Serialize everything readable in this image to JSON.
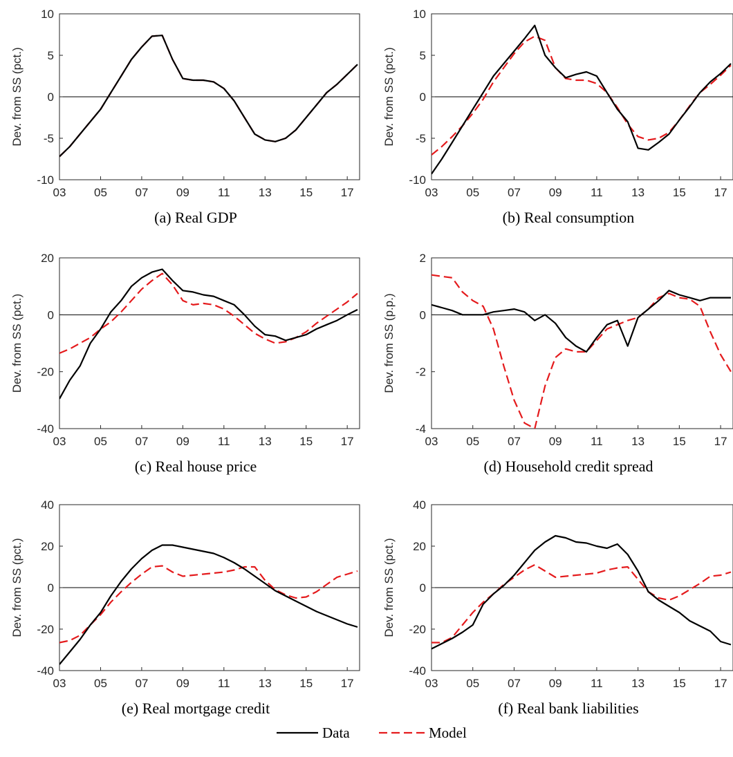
{
  "legend": {
    "entries": [
      {
        "label": "Data",
        "color": "#000000",
        "dash": "solid"
      },
      {
        "label": "Model",
        "color": "#e41a1c",
        "dash": "dashed"
      }
    ],
    "placement": "bottom-center"
  },
  "colors": {
    "data": "#000000",
    "model": "#e41a1c"
  },
  "chart_data": [
    {
      "type": "line",
      "caption": "(a) Real GDP",
      "ylabel": "Dev. from SS (pct.)",
      "xlim": [
        2003,
        2017.6
      ],
      "ylim": [
        -10,
        10
      ],
      "yticks": [
        -10,
        -5,
        0,
        5,
        10
      ],
      "xtick_labels": [
        "03",
        "05",
        "07",
        "09",
        "11",
        "13",
        "15",
        "17"
      ],
      "x": [
        2003.0,
        2003.5,
        2004.0,
        2004.5,
        2005.0,
        2005.5,
        2006.0,
        2006.5,
        2007.0,
        2007.5,
        2008.0,
        2008.5,
        2009.0,
        2009.5,
        2010.0,
        2010.5,
        2011.0,
        2011.5,
        2012.0,
        2012.5,
        2013.0,
        2013.5,
        2014.0,
        2014.5,
        2015.0,
        2015.5,
        2016.0,
        2016.5,
        2017.0,
        2017.5
      ],
      "series": [
        {
          "name": "Data",
          "values": [
            -7.2,
            -6.0,
            -4.5,
            -3.0,
            -1.5,
            0.5,
            2.5,
            4.5,
            6.0,
            7.3,
            7.4,
            4.5,
            2.2,
            2.0,
            2.0,
            1.8,
            1.0,
            -0.5,
            -2.5,
            -4.5,
            -5.2,
            -5.4,
            -5.0,
            -4.0,
            -2.5,
            -1.0,
            0.5,
            1.5,
            2.7,
            3.9
          ]
        },
        {
          "name": "Model",
          "values": [
            -7.2,
            -6.0,
            -4.5,
            -3.0,
            -1.5,
            0.5,
            2.5,
            4.5,
            6.0,
            7.3,
            7.4,
            4.5,
            2.2,
            2.0,
            2.0,
            1.8,
            1.0,
            -0.5,
            -2.5,
            -4.5,
            -5.2,
            -5.4,
            -5.0,
            -4.0,
            -2.5,
            -1.0,
            0.5,
            1.5,
            2.7,
            3.9
          ]
        }
      ]
    },
    {
      "type": "line",
      "caption": "(b) Real consumption",
      "ylabel": "Dev. from SS (pct.)",
      "xlim": [
        2003,
        2017.6
      ],
      "ylim": [
        -10,
        10
      ],
      "yticks": [
        -10,
        -5,
        0,
        5,
        10
      ],
      "xtick_labels": [
        "03",
        "05",
        "07",
        "09",
        "11",
        "13",
        "15",
        "17"
      ],
      "x": [
        2003.0,
        2003.5,
        2004.0,
        2004.5,
        2005.0,
        2005.5,
        2006.0,
        2006.5,
        2007.0,
        2007.5,
        2008.0,
        2008.5,
        2009.0,
        2009.5,
        2010.0,
        2010.5,
        2011.0,
        2011.5,
        2012.0,
        2012.5,
        2013.0,
        2013.5,
        2014.0,
        2014.5,
        2015.0,
        2015.5,
        2016.0,
        2016.5,
        2017.0,
        2017.5
      ],
      "series": [
        {
          "name": "Data",
          "values": [
            -9.3,
            -7.5,
            -5.5,
            -3.5,
            -1.5,
            0.5,
            2.5,
            4.0,
            5.5,
            7.0,
            8.6,
            5.0,
            3.5,
            2.3,
            2.7,
            3.0,
            2.5,
            0.5,
            -1.5,
            -3.0,
            -6.2,
            -6.4,
            -5.5,
            -4.5,
            -2.8,
            -1.2,
            0.5,
            1.8,
            2.8,
            4.0
          ]
        },
        {
          "name": "Model",
          "values": [
            -7.0,
            -6.0,
            -4.8,
            -3.5,
            -2.0,
            -0.3,
            1.8,
            3.5,
            5.2,
            6.6,
            7.3,
            6.8,
            3.5,
            2.2,
            2.0,
            2.0,
            1.6,
            0.5,
            -1.3,
            -3.3,
            -4.8,
            -5.2,
            -5.0,
            -4.3,
            -2.8,
            -1.1,
            0.5,
            1.5,
            2.6,
            3.8
          ]
        }
      ]
    },
    {
      "type": "line",
      "caption": "(c) Real house price",
      "ylabel": "Dev. from SS (pct.)",
      "xlim": [
        2003,
        2017.6
      ],
      "ylim": [
        -40,
        20
      ],
      "yticks": [
        -40,
        -20,
        0,
        20
      ],
      "xtick_labels": [
        "03",
        "05",
        "07",
        "09",
        "11",
        "13",
        "15",
        "17"
      ],
      "x": [
        2003.0,
        2003.5,
        2004.0,
        2004.5,
        2005.0,
        2005.5,
        2006.0,
        2006.5,
        2007.0,
        2007.5,
        2008.0,
        2008.5,
        2009.0,
        2009.5,
        2010.0,
        2010.5,
        2011.0,
        2011.5,
        2012.0,
        2012.5,
        2013.0,
        2013.5,
        2014.0,
        2014.5,
        2015.0,
        2015.5,
        2016.0,
        2016.5,
        2017.0,
        2017.5
      ],
      "series": [
        {
          "name": "Data",
          "values": [
            -29.5,
            -23.0,
            -18.0,
            -10.0,
            -5.0,
            1.0,
            5.0,
            10.0,
            13.0,
            15.0,
            16.0,
            12.0,
            8.5,
            8.0,
            7.0,
            6.5,
            5.0,
            3.5,
            0.0,
            -4.0,
            -7.0,
            -7.5,
            -9.0,
            -8.0,
            -7.0,
            -5.0,
            -3.5,
            -2.0,
            0.0,
            1.8
          ]
        },
        {
          "name": "Model",
          "values": [
            -13.5,
            -12.0,
            -10.0,
            -8.0,
            -5.0,
            -2.5,
            1.0,
            5.0,
            9.0,
            12.0,
            14.5,
            10.5,
            5.0,
            3.5,
            4.0,
            3.5,
            2.0,
            -0.5,
            -3.5,
            -6.5,
            -8.5,
            -10.0,
            -9.5,
            -8.0,
            -6.0,
            -3.0,
            -0.5,
            2.0,
            4.5,
            7.5
          ]
        }
      ]
    },
    {
      "type": "line",
      "caption": "(d) Household credit spread",
      "ylabel": "Dev. from SS (p.p.)",
      "xlim": [
        2003,
        2017.6
      ],
      "ylim": [
        -4,
        2
      ],
      "yticks": [
        -4,
        -2,
        0,
        2
      ],
      "xtick_labels": [
        "03",
        "05",
        "07",
        "09",
        "11",
        "13",
        "15",
        "17"
      ],
      "x": [
        2003.0,
        2003.5,
        2004.0,
        2004.5,
        2005.0,
        2005.5,
        2006.0,
        2006.5,
        2007.0,
        2007.5,
        2008.0,
        2008.5,
        2009.0,
        2009.5,
        2010.0,
        2010.5,
        2011.0,
        2011.5,
        2012.0,
        2012.5,
        2013.0,
        2013.5,
        2014.0,
        2014.5,
        2015.0,
        2015.5,
        2016.0,
        2016.5,
        2017.0,
        2017.5
      ],
      "series": [
        {
          "name": "Data",
          "values": [
            0.35,
            0.25,
            0.15,
            0.0,
            0.0,
            0.0,
            0.1,
            0.15,
            0.2,
            0.1,
            -0.2,
            0.0,
            -0.3,
            -0.8,
            -1.1,
            -1.3,
            -0.8,
            -0.35,
            -0.2,
            -1.1,
            -0.1,
            0.2,
            0.5,
            0.85,
            0.7,
            0.6,
            0.5,
            0.6,
            0.6,
            0.6
          ]
        },
        {
          "name": "Model",
          "values": [
            1.4,
            1.35,
            1.3,
            0.8,
            0.5,
            0.3,
            -0.5,
            -1.8,
            -3.0,
            -3.8,
            -4.0,
            -2.5,
            -1.5,
            -1.2,
            -1.3,
            -1.3,
            -0.9,
            -0.5,
            -0.35,
            -0.2,
            -0.1,
            0.2,
            0.6,
            0.75,
            0.6,
            0.55,
            0.3,
            -0.6,
            -1.4,
            -2.0
          ]
        }
      ]
    },
    {
      "type": "line",
      "caption": "(e) Real mortgage credit",
      "ylabel": "Dev. from SS (pct.)",
      "xlim": [
        2003,
        2017.6
      ],
      "ylim": [
        -40,
        40
      ],
      "yticks": [
        -40,
        -20,
        0,
        20,
        40
      ],
      "xtick_labels": [
        "03",
        "05",
        "07",
        "09",
        "11",
        "13",
        "15",
        "17"
      ],
      "x": [
        2003.0,
        2003.5,
        2004.0,
        2004.5,
        2005.0,
        2005.5,
        2006.0,
        2006.5,
        2007.0,
        2007.5,
        2008.0,
        2008.5,
        2009.0,
        2009.5,
        2010.0,
        2010.5,
        2011.0,
        2011.5,
        2012.0,
        2012.5,
        2013.0,
        2013.5,
        2014.0,
        2014.5,
        2015.0,
        2015.5,
        2016.0,
        2016.5,
        2017.0,
        2017.5
      ],
      "series": [
        {
          "name": "Data",
          "values": [
            -37.0,
            -31.0,
            -25.0,
            -18.0,
            -12.0,
            -4.0,
            3.0,
            9.0,
            14.0,
            18.0,
            20.5,
            20.5,
            19.5,
            18.5,
            17.5,
            16.5,
            14.5,
            12.0,
            9.0,
            5.5,
            2.0,
            -1.5,
            -4.0,
            -6.5,
            -9.0,
            -11.5,
            -13.5,
            -15.5,
            -17.5,
            -19.0
          ]
        },
        {
          "name": "Model",
          "values": [
            -26.5,
            -25.5,
            -23.0,
            -18.0,
            -13.0,
            -7.0,
            -2.0,
            2.5,
            6.5,
            10.0,
            10.5,
            7.5,
            5.5,
            6.0,
            6.5,
            7.0,
            7.5,
            8.5,
            10.0,
            10.0,
            3.5,
            -1.0,
            -3.5,
            -5.0,
            -4.5,
            -2.0,
            1.5,
            5.0,
            6.5,
            8.0
          ]
        }
      ]
    },
    {
      "type": "line",
      "caption": "(f) Real bank liabilities",
      "ylabel": "Dev. from SS (pct.)",
      "xlim": [
        2003,
        2017.6
      ],
      "ylim": [
        -40,
        40
      ],
      "yticks": [
        -40,
        -20,
        0,
        20,
        40
      ],
      "xtick_labels": [
        "03",
        "05",
        "07",
        "09",
        "11",
        "13",
        "15",
        "17"
      ],
      "x": [
        2003.0,
        2003.5,
        2004.0,
        2004.5,
        2005.0,
        2005.5,
        2006.0,
        2006.5,
        2007.0,
        2007.5,
        2008.0,
        2008.5,
        2009.0,
        2009.5,
        2010.0,
        2010.5,
        2011.0,
        2011.5,
        2012.0,
        2012.5,
        2013.0,
        2013.5,
        2014.0,
        2014.5,
        2015.0,
        2015.5,
        2016.0,
        2016.5,
        2017.0,
        2017.5
      ],
      "series": [
        {
          "name": "Data",
          "values": [
            -29.5,
            -27.0,
            -24.5,
            -21.5,
            -18.0,
            -8.0,
            -3.0,
            1.0,
            6.0,
            12.0,
            18.0,
            22.0,
            25.0,
            24.0,
            22.0,
            21.5,
            20.0,
            19.0,
            21.0,
            16.0,
            8.0,
            -2.0,
            -6.0,
            -9.0,
            -12.0,
            -16.0,
            -18.5,
            -21.0,
            -26.0,
            -27.5
          ]
        },
        {
          "name": "Model",
          "values": [
            -26.5,
            -26.5,
            -24.0,
            -18.0,
            -12.0,
            -7.0,
            -3.0,
            1.5,
            5.0,
            8.5,
            11.0,
            8.0,
            5.0,
            5.5,
            6.0,
            6.5,
            7.0,
            8.5,
            9.5,
            10.0,
            4.0,
            -2.0,
            -5.0,
            -6.0,
            -4.0,
            -1.0,
            2.0,
            5.5,
            6.0,
            7.5
          ]
        }
      ]
    }
  ]
}
